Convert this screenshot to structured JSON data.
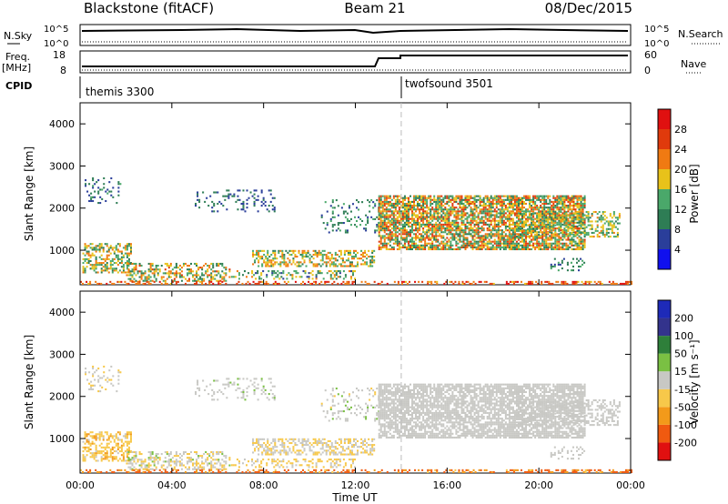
{
  "header": {
    "radar": "Blackstone (fitACF)",
    "beam": "Beam 21",
    "date": "08/Dec/2015"
  },
  "top_panels": {
    "nsky_label": "N.Sky",
    "nsearch_label": "N.Search",
    "noise_ticks": [
      "10^5",
      "10^0"
    ],
    "freq_label_1": "Freq.",
    "freq_label_2": "[MHz]",
    "freq_ticks": [
      "18",
      "8"
    ],
    "nave_label": "Nave",
    "nave_ticks": [
      "60",
      "0"
    ],
    "cpid_label": "CPID",
    "cpid_1": "themis 3300",
    "cpid_2": "twofsound 3501"
  },
  "axes": {
    "ylabel": "Slant Range [km]",
    "yticks": [
      "4000",
      "3000",
      "2000",
      "1000"
    ],
    "xticks": [
      "00:00",
      "04:00",
      "08:00",
      "12:00",
      "16:00",
      "20:00",
      "00:00"
    ],
    "xlabel": "Time UT"
  },
  "colorbars": {
    "power_label": "Power [dB]",
    "power_ticks": [
      "28",
      "24",
      "20",
      "16",
      "12",
      "8",
      "4"
    ],
    "velocity_label": "Velocity [m s⁻¹]",
    "velocity_ticks": [
      "200",
      "100",
      "50",
      "15",
      "-15",
      "-50",
      "-100",
      "-200"
    ]
  },
  "chart_data": {
    "type": "heatmap",
    "title": "Blackstone (fitACF)  Beam 21  08/Dec/2015",
    "x_range_hours": [
      0,
      24
    ],
    "y_range_km": [
      180,
      4500
    ],
    "xlabel": "Time UT",
    "ylabel": "Slant Range [km]",
    "mode_change_hour": 14.0,
    "power_scale_db": [
      0,
      30
    ],
    "velocity_scale_ms": [
      -200,
      200
    ],
    "power_colors": [
      "#1010ee",
      "#2a3e9a",
      "#2e7d55",
      "#4aa86a",
      "#e8c21a",
      "#f07a12",
      "#e03a0c",
      "#e01010"
    ],
    "velocity_colors": [
      "#e01010",
      "#f05a10",
      "#f39a1a",
      "#f7c84a",
      "#c8c8c4",
      "#7ac043",
      "#2e7f3a",
      "#33338c",
      "#1e2ab8"
    ],
    "panels": [
      {
        "name": "Power",
        "units": "dB"
      },
      {
        "name": "Velocity",
        "units": "m s⁻¹"
      }
    ]
  }
}
